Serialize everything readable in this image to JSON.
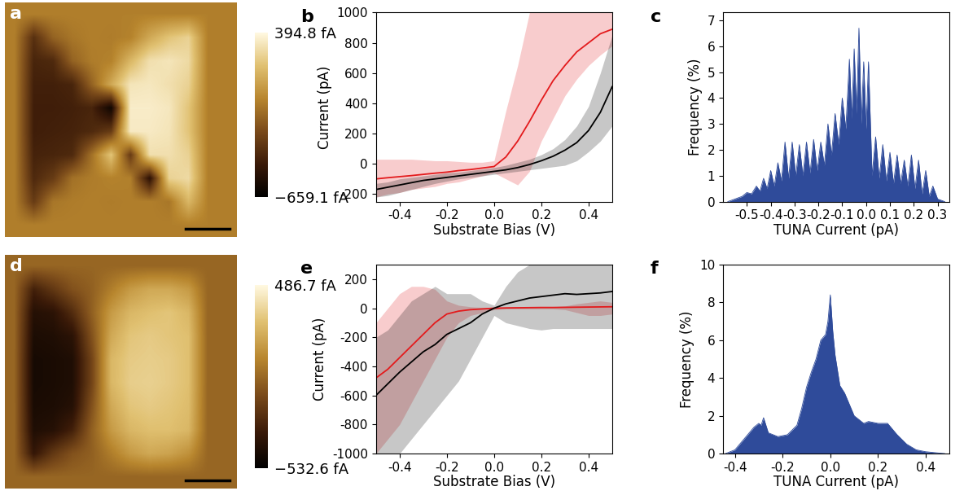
{
  "chart_data": [
    {
      "type": "heatmap",
      "panel": "a",
      "tick_labels": false,
      "cells": [
        [
          -50,
          -50,
          -50,
          -50,
          -50,
          -50,
          -50,
          -50,
          -50,
          -50,
          -50,
          -50
        ],
        [
          -50,
          -350,
          -150,
          -80,
          -50,
          -60,
          -40,
          100,
          200,
          250,
          -50,
          -50
        ],
        [
          -50,
          -400,
          -380,
          -150,
          -60,
          -40,
          150,
          300,
          320,
          280,
          -50,
          -50
        ],
        [
          -50,
          -420,
          -420,
          -400,
          -150,
          100,
          320,
          330,
          300,
          250,
          -50,
          -50
        ],
        [
          -50,
          -430,
          -430,
          -420,
          -400,
          -600,
          350,
          350,
          330,
          200,
          -50,
          -50
        ],
        [
          -50,
          -430,
          -420,
          -410,
          -380,
          -300,
          340,
          340,
          320,
          200,
          -50,
          -50
        ],
        [
          -50,
          -410,
          -400,
          -380,
          -100,
          200,
          -300,
          300,
          300,
          250,
          -50,
          -50
        ],
        [
          -50,
          -380,
          -300,
          -100,
          -60,
          -40,
          -50,
          -500,
          250,
          280,
          -50,
          -50
        ],
        [
          -50,
          -300,
          -80,
          -60,
          -50,
          -60,
          -50,
          -50,
          -80,
          150,
          -50,
          -50
        ],
        [
          -50,
          -50,
          -50,
          -50,
          -50,
          -50,
          -50,
          -50,
          -50,
          -50,
          -50,
          -50
        ]
      ],
      "colorbar_range": [
        -659.1,
        394.8
      ],
      "colorbar_ticks": [
        {
          "value": -659.1,
          "label": "−659.1 fA"
        },
        {
          "value": 394.8,
          "label": "394.8 fA"
        }
      ]
    },
    {
      "type": "line",
      "panel": "b",
      "x_label": "Substrate Bias (V)",
      "y_label": "Current (pA)",
      "x": [
        -0.5,
        -0.45,
        -0.4,
        -0.35,
        -0.3,
        -0.25,
        -0.2,
        -0.15,
        -0.1,
        -0.05,
        0.0,
        0.05,
        0.1,
        0.15,
        0.2,
        0.25,
        0.3,
        0.35,
        0.4,
        0.45,
        0.5
      ],
      "xlim": [
        -0.5,
        0.5
      ],
      "xticks": [
        -0.4,
        -0.2,
        0.0,
        0.2,
        0.4
      ],
      "ylim": [
        -250,
        1000
      ],
      "yticks": [
        -200,
        0,
        200,
        400,
        600,
        800,
        1000
      ],
      "series": [
        {
          "color": "#e31a1c",
          "values": [
            -100,
            -92,
            -85,
            -78,
            -70,
            -62,
            -55,
            -45,
            -38,
            -28,
            -18,
            45,
            150,
            280,
            420,
            550,
            650,
            740,
            800,
            860,
            890
          ],
          "lower": [
            -220,
            -200,
            -190,
            -170,
            -160,
            -150,
            -130,
            -120,
            -100,
            -80,
            -60,
            -100,
            -140,
            -50,
            150,
            300,
            450,
            560,
            650,
            720,
            780
          ],
          "upper": [
            30,
            30,
            30,
            30,
            25,
            20,
            20,
            15,
            10,
            10,
            20,
            350,
            650,
            1000,
            1000,
            1000,
            1000,
            1000,
            1000,
            1000,
            1000
          ]
        },
        {
          "color": "#000000",
          "values": [
            -170,
            -155,
            -140,
            -125,
            -110,
            -100,
            -90,
            -80,
            -70,
            -60,
            -50,
            -40,
            -25,
            -5,
            20,
            50,
            90,
            140,
            220,
            340,
            510
          ],
          "lower": [
            -220,
            -210,
            -190,
            -170,
            -150,
            -130,
            -115,
            -100,
            -90,
            -80,
            -70,
            -60,
            -50,
            -40,
            -30,
            -20,
            -10,
            20,
            80,
            150,
            250
          ],
          "upper": [
            -130,
            -120,
            -100,
            -90,
            -80,
            -70,
            -60,
            -55,
            -45,
            -35,
            -25,
            -10,
            10,
            30,
            60,
            100,
            160,
            250,
            380,
            600,
            850
          ]
        }
      ]
    },
    {
      "type": "area",
      "panel": "c",
      "color": "#2f4b9a",
      "x_label": "TUNA Current (pA)",
      "y_label": "Frequency (%)",
      "x": [
        -0.58,
        -0.55,
        -0.52,
        -0.5,
        -0.48,
        -0.46,
        -0.445,
        -0.43,
        -0.415,
        -0.4,
        -0.385,
        -0.37,
        -0.355,
        -0.34,
        -0.325,
        -0.31,
        -0.295,
        -0.28,
        -0.265,
        -0.25,
        -0.235,
        -0.22,
        -0.205,
        -0.19,
        -0.175,
        -0.16,
        -0.145,
        -0.13,
        -0.115,
        -0.1,
        -0.085,
        -0.07,
        -0.06,
        -0.05,
        -0.04,
        -0.03,
        -0.02,
        -0.01,
        0.0,
        0.01,
        0.025,
        0.04,
        0.055,
        0.07,
        0.085,
        0.1,
        0.115,
        0.13,
        0.145,
        0.16,
        0.175,
        0.19,
        0.205,
        0.22,
        0.235,
        0.25,
        0.265,
        0.28,
        0.3,
        0.33
      ],
      "values": [
        0,
        0.1,
        0.2,
        0.35,
        0.3,
        0.6,
        0.4,
        0.9,
        0.5,
        1.2,
        0.6,
        1.5,
        0.8,
        2.3,
        0.9,
        2.3,
        1.0,
        2.2,
        1.0,
        2.3,
        1.1,
        2.4,
        1.2,
        2.3,
        1.4,
        3.0,
        1.8,
        3.4,
        2.2,
        4.0,
        2.8,
        5.5,
        3.2,
        5.9,
        3.4,
        6.7,
        3.0,
        5.4,
        2.8,
        5.4,
        1.0,
        2.5,
        0.9,
        2.2,
        0.8,
        1.9,
        0.7,
        1.8,
        0.7,
        1.6,
        0.6,
        1.8,
        0.5,
        1.6,
        0.3,
        1.2,
        0.2,
        0.6,
        0.1,
        0
      ],
      "xlim": [
        -0.6,
        0.35
      ],
      "xticks": [
        -0.5,
        -0.4,
        -0.3,
        -0.2,
        -0.1,
        0.0,
        0.1,
        0.2,
        0.3
      ],
      "ylim": [
        0,
        7.3
      ],
      "yticks": [
        0,
        1,
        2,
        3,
        4,
        5,
        6,
        7
      ]
    },
    {
      "type": "heatmap",
      "panel": "d",
      "tick_labels": false,
      "cells": [
        [
          -30,
          -30,
          -30,
          -30,
          -30,
          -30,
          -30,
          -30,
          -30,
          -30,
          -30,
          -30
        ],
        [
          -30,
          -300,
          -200,
          -100,
          -50,
          50,
          150,
          200,
          200,
          150,
          -30,
          -30
        ],
        [
          -30,
          -400,
          -380,
          -250,
          -50,
          150,
          250,
          280,
          300,
          250,
          -30,
          -30
        ],
        [
          -30,
          -430,
          -420,
          -380,
          -100,
          200,
          300,
          320,
          300,
          280,
          -30,
          -30
        ],
        [
          -30,
          -450,
          -440,
          -420,
          -150,
          250,
          320,
          330,
          320,
          280,
          -30,
          -30
        ],
        [
          -30,
          -450,
          -440,
          -420,
          -150,
          250,
          330,
          340,
          320,
          280,
          -30,
          -30
        ],
        [
          -30,
          -440,
          -430,
          -400,
          -100,
          200,
          300,
          320,
          300,
          270,
          -30,
          -30
        ],
        [
          -30,
          -420,
          -400,
          -300,
          -50,
          150,
          250,
          280,
          280,
          250,
          -30,
          -30
        ],
        [
          -30,
          -350,
          -200,
          -100,
          -50,
          50,
          150,
          200,
          180,
          120,
          -30,
          -30
        ],
        [
          -30,
          -30,
          -30,
          -30,
          -30,
          -30,
          -30,
          -30,
          -30,
          -30,
          -30,
          -30
        ]
      ],
      "colorbar_range": [
        -532.6,
        486.7
      ],
      "colorbar_ticks": [
        {
          "value": -532.6,
          "label": "−532.6 fA"
        },
        {
          "value": 486.7,
          "label": "486.7 fA"
        }
      ]
    },
    {
      "type": "line",
      "panel": "e",
      "x_label": "Substrate Bias (V)",
      "y_label": "Current (pA)",
      "x": [
        -0.5,
        -0.45,
        -0.4,
        -0.35,
        -0.3,
        -0.25,
        -0.2,
        -0.15,
        -0.1,
        -0.05,
        0.0,
        0.05,
        0.1,
        0.15,
        0.2,
        0.25,
        0.3,
        0.35,
        0.4,
        0.45,
        0.5
      ],
      "xlim": [
        -0.5,
        0.5
      ],
      "xticks": [
        -0.4,
        -0.2,
        0.0,
        0.2,
        0.4
      ],
      "ylim": [
        -1000,
        300
      ],
      "yticks": [
        -1000,
        -800,
        -600,
        -400,
        -200,
        0,
        200
      ],
      "series": [
        {
          "color": "#e31a1c",
          "values": [
            -480,
            -420,
            -340,
            -260,
            -180,
            -100,
            -40,
            -20,
            -10,
            -5,
            0,
            2,
            3,
            4,
            5,
            5,
            6,
            7,
            8,
            9,
            10
          ],
          "lower": [
            -1000,
            -900,
            -800,
            -650,
            -500,
            -350,
            -200,
            -100,
            -50,
            -30,
            -10,
            -5,
            -5,
            -5,
            -5,
            -5,
            -10,
            -30,
            -50,
            -50,
            -40
          ],
          "upper": [
            -100,
            0,
            100,
            150,
            150,
            130,
            50,
            20,
            10,
            5,
            5,
            5,
            5,
            5,
            8,
            10,
            15,
            30,
            40,
            50,
            40
          ]
        },
        {
          "color": "#000000",
          "values": [
            -600,
            -520,
            -440,
            -370,
            -300,
            -250,
            -180,
            -140,
            -100,
            -40,
            0,
            30,
            50,
            70,
            80,
            90,
            100,
            95,
            100,
            105,
            115
          ],
          "lower": [
            -1000,
            -1000,
            -1000,
            -900,
            -800,
            -700,
            -600,
            -500,
            -350,
            -200,
            -50,
            -100,
            -120,
            -140,
            -150,
            -140,
            -140,
            -140,
            -140,
            -140,
            -140
          ],
          "upper": [
            -200,
            -150,
            -50,
            50,
            100,
            150,
            100,
            100,
            100,
            50,
            20,
            150,
            250,
            300,
            300,
            300,
            300,
            300,
            300,
            300,
            300
          ]
        }
      ]
    },
    {
      "type": "area",
      "panel": "f",
      "color": "#2f4b9a",
      "x_label": "TUNA Current (pA)",
      "y_label": "Frequency (%)",
      "x": [
        -0.44,
        -0.4,
        -0.36,
        -0.32,
        -0.3,
        -0.29,
        -0.28,
        -0.26,
        -0.22,
        -0.18,
        -0.14,
        -0.12,
        -0.1,
        -0.08,
        -0.06,
        -0.04,
        -0.02,
        -0.01,
        0.0,
        0.01,
        0.02,
        0.04,
        0.06,
        0.08,
        0.1,
        0.12,
        0.14,
        0.16,
        0.2,
        0.24,
        0.28,
        0.32,
        0.36,
        0.4,
        0.44,
        0.48
      ],
      "values": [
        0,
        0.2,
        0.8,
        1.4,
        1.6,
        1.5,
        1.9,
        1.1,
        0.9,
        1.0,
        1.5,
        2.4,
        3.5,
        4.3,
        5.0,
        6.0,
        6.3,
        7.0,
        8.4,
        6.5,
        5.2,
        3.6,
        3.2,
        2.6,
        2.0,
        1.8,
        1.6,
        1.7,
        1.6,
        1.6,
        1.0,
        0.5,
        0.2,
        0.1,
        0.05,
        0
      ],
      "xlim": [
        -0.45,
        0.5
      ],
      "xticks": [
        -0.4,
        -0.2,
        0.0,
        0.2,
        0.4
      ],
      "ylim": [
        0,
        10
      ],
      "yticks": [
        0,
        2,
        4,
        6,
        8,
        10
      ]
    }
  ]
}
